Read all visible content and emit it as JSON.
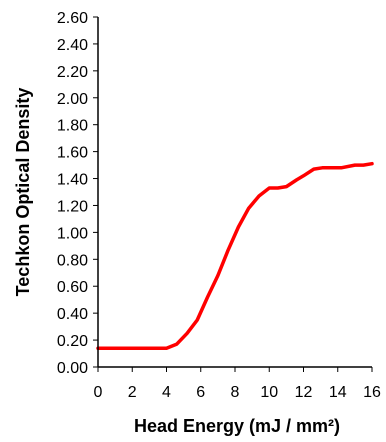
{
  "chart_data": {
    "type": "line",
    "title": "",
    "xlabel": "Head Energy (mJ / mm²)",
    "ylabel": "Techkon Optical Density",
    "xlim": [
      0,
      16
    ],
    "ylim": [
      0,
      2.6
    ],
    "x_ticks": [
      "0",
      "2",
      "4",
      "6",
      "8",
      "10",
      "12",
      "14",
      "16"
    ],
    "y_ticks": [
      "0.00",
      "0.20",
      "0.40",
      "0.60",
      "0.80",
      "1.00",
      "1.20",
      "1.40",
      "1.60",
      "1.80",
      "2.00",
      "2.20",
      "2.40",
      "2.60"
    ],
    "grid": false,
    "legend": "none",
    "series": [
      {
        "color": "#ff0000",
        "x": [
          0,
          1,
          2,
          3,
          4,
          4.6,
          5.2,
          5.8,
          6.4,
          7,
          7.6,
          8.2,
          8.8,
          9.4,
          10,
          10.5,
          11,
          11.6,
          12,
          12.6,
          13.1,
          13.6,
          14.2,
          15,
          15.5,
          16
        ],
        "y": [
          0.14,
          0.14,
          0.14,
          0.14,
          0.14,
          0.17,
          0.25,
          0.35,
          0.52,
          0.68,
          0.87,
          1.04,
          1.18,
          1.27,
          1.33,
          1.33,
          1.34,
          1.39,
          1.42,
          1.47,
          1.48,
          1.48,
          1.48,
          1.5,
          1.5,
          1.51
        ]
      }
    ]
  }
}
